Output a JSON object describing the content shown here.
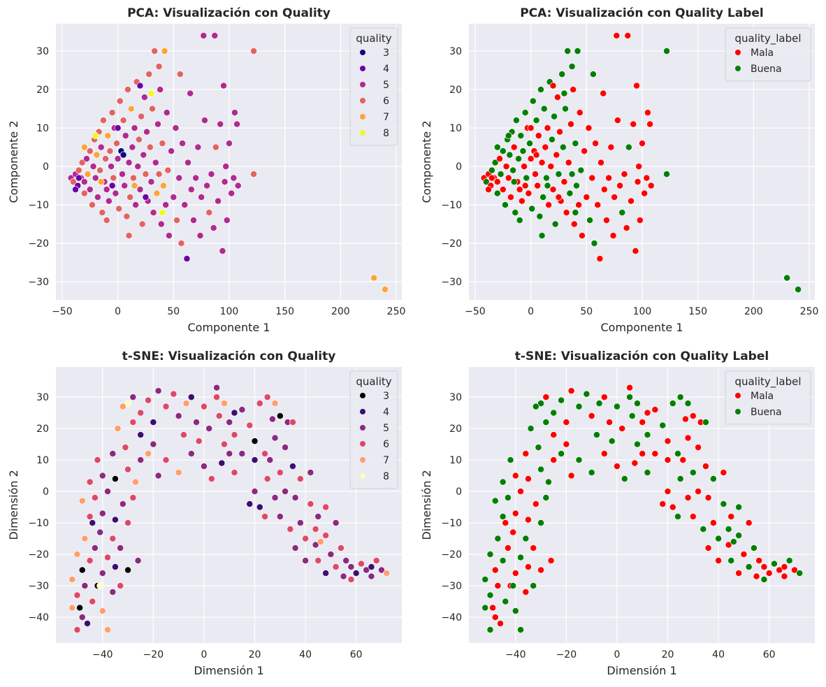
{
  "chart_data": [
    {
      "type": "scatter",
      "title": "PCA: Visualización con Quality",
      "xlabel": "Componente 1",
      "ylabel": "Componente 2",
      "dataset": "pca",
      "hue": "quality",
      "xlim": [
        -55.6,
        255
      ],
      "ylim": [
        -34.7,
        37.1
      ],
      "xticks": [
        -50,
        0,
        50,
        100,
        150,
        200,
        250
      ],
      "yticks": [
        -30,
        -20,
        -10,
        0,
        10,
        20,
        30
      ],
      "legend_title": "quality",
      "legend": [
        {
          "label": "3",
          "key": 3,
          "color": "#0d0887"
        },
        {
          "label": "4",
          "key": 4,
          "color": "#6a00a8"
        },
        {
          "label": "5",
          "key": 5,
          "color": "#b12a90"
        },
        {
          "label": "6",
          "key": 6,
          "color": "#e16462"
        },
        {
          "label": "7",
          "key": 7,
          "color": "#fca636"
        },
        {
          "label": "8",
          "key": 8,
          "color": "#f0f921"
        }
      ],
      "legend_position": "top-right",
      "grid": true
    },
    {
      "type": "scatter",
      "title": "PCA: Visualización con Quality Label",
      "xlabel": "Componente 1",
      "ylabel": "Componente 2",
      "dataset": "pca",
      "hue": "quality_label",
      "xlim": [
        -55.6,
        255
      ],
      "ylim": [
        -34.7,
        37.1
      ],
      "xticks": [
        -50,
        0,
        50,
        100,
        150,
        200,
        250
      ],
      "yticks": [
        -30,
        -20,
        -10,
        0,
        10,
        20,
        30
      ],
      "legend_title": "quality_label",
      "legend": [
        {
          "label": "Mala",
          "key": "Mala",
          "color": "#ff0000"
        },
        {
          "label": "Buena",
          "key": "Buena",
          "color": "#008000"
        }
      ],
      "legend_position": "top-right",
      "grid": true
    },
    {
      "type": "scatter",
      "title": "t-SNE: Visualización con Quality",
      "xlabel": "Dimensión 1",
      "ylabel": "Dimensión 2",
      "dataset": "tsne",
      "hue": "quality",
      "xlim": [
        -58.4,
        78
      ],
      "ylim": [
        -48.2,
        39.6
      ],
      "xticks": [
        -40,
        -20,
        0,
        20,
        40,
        60
      ],
      "yticks": [
        -40,
        -30,
        -20,
        -10,
        0,
        10,
        20,
        30
      ],
      "legend_title": "quality",
      "legend": [
        {
          "label": "3",
          "key": 3,
          "color": "#000004"
        },
        {
          "label": "4",
          "key": 4,
          "color": "#3b0f70"
        },
        {
          "label": "5",
          "key": 5,
          "color": "#8c2981"
        },
        {
          "label": "6",
          "key": 6,
          "color": "#de4968"
        },
        {
          "label": "7",
          "key": 7,
          "color": "#fe9f6d"
        },
        {
          "label": "8",
          "key": 8,
          "color": "#fcfdbf"
        }
      ],
      "legend_position": "top-right",
      "grid": true
    },
    {
      "type": "scatter",
      "title": "t-SNE: Visualización con Quality Label",
      "xlabel": "Dimensión 1",
      "ylabel": "Dimensión 2",
      "dataset": "tsne",
      "hue": "quality_label",
      "xlim": [
        -58.4,
        78
      ],
      "ylim": [
        -48.2,
        39.6
      ],
      "xticks": [
        -40,
        -20,
        0,
        20,
        40,
        60
      ],
      "yticks": [
        -40,
        -30,
        -20,
        -10,
        0,
        10,
        20,
        30
      ],
      "legend_title": "quality_label",
      "legend": [
        {
          "label": "Mala",
          "key": "Mala",
          "color": "#ff0000"
        },
        {
          "label": "Buena",
          "key": "Buena",
          "color": "#008000"
        }
      ],
      "legend_position": "top-right",
      "grid": true
    }
  ],
  "label_rule": {
    "Mala": "quality <= 5",
    "Buena": "quality >= 6"
  },
  "datasets": {
    "pca": [
      [
        -42,
        -3,
        5
      ],
      [
        -40,
        -4,
        6
      ],
      [
        -38,
        -2,
        5
      ],
      [
        -36,
        -5,
        4
      ],
      [
        -35,
        -1,
        6
      ],
      [
        -33,
        -3,
        5
      ],
      [
        -32,
        1,
        6
      ],
      [
        -30,
        -4,
        5
      ],
      [
        -30,
        -7,
        6
      ],
      [
        -28,
        2,
        5
      ],
      [
        -27,
        -2,
        7
      ],
      [
        -25,
        -6,
        5
      ],
      [
        -25,
        4,
        6
      ],
      [
        -23,
        -10,
        6
      ],
      [
        -22,
        0,
        5
      ],
      [
        -21,
        7,
        6
      ],
      [
        -20,
        -3,
        5
      ],
      [
        -19,
        3,
        7
      ],
      [
        -18,
        -8,
        5
      ],
      [
        -17,
        9,
        6
      ],
      [
        -16,
        -1,
        6
      ],
      [
        -15,
        5,
        5
      ],
      [
        -14,
        -12,
        6
      ],
      [
        -13,
        12,
        6
      ],
      [
        -12,
        -4,
        5
      ],
      [
        -11,
        2,
        6
      ],
      [
        -10,
        -6,
        5
      ],
      [
        -9,
        8,
        7
      ],
      [
        -8,
        -9,
        5
      ],
      [
        -7,
        4,
        6
      ],
      [
        -6,
        0,
        5
      ],
      [
        -5,
        14,
        6
      ],
      [
        -4,
        -3,
        6
      ],
      [
        -3,
        10,
        5
      ],
      [
        -2,
        -7,
        5
      ],
      [
        -1,
        6,
        6
      ],
      [
        0,
        2,
        5
      ],
      [
        1,
        -11,
        6
      ],
      [
        2,
        17,
        6
      ],
      [
        3,
        4,
        3
      ],
      [
        4,
        -2,
        5
      ],
      [
        5,
        12,
        6
      ],
      [
        6,
        -5,
        5
      ],
      [
        7,
        8,
        5
      ],
      [
        8,
        -13,
        6
      ],
      [
        9,
        20,
        6
      ],
      [
        10,
        1,
        5
      ],
      [
        11,
        -8,
        6
      ],
      [
        12,
        15,
        7
      ],
      [
        13,
        5,
        5
      ],
      [
        14,
        -3,
        6
      ],
      [
        15,
        10,
        5
      ],
      [
        16,
        -10,
        5
      ],
      [
        17,
        22,
        6
      ],
      [
        18,
        0,
        5
      ],
      [
        19,
        7,
        6
      ],
      [
        20,
        -6,
        5
      ],
      [
        21,
        13,
        6
      ],
      [
        22,
        -15,
        6
      ],
      [
        23,
        3,
        5
      ],
      [
        24,
        18,
        5
      ],
      [
        25,
        -2,
        6
      ],
      [
        26,
        9,
        5
      ],
      [
        27,
        -9,
        5
      ],
      [
        28,
        24,
        6
      ],
      [
        29,
        5,
        6
      ],
      [
        30,
        -4,
        5
      ],
      [
        31,
        15,
        6
      ],
      [
        32,
        -12,
        5
      ],
      [
        33,
        30,
        6
      ],
      [
        34,
        1,
        5
      ],
      [
        35,
        -7,
        7
      ],
      [
        36,
        11,
        5
      ],
      [
        37,
        -2,
        6
      ],
      [
        38,
        20,
        5
      ],
      [
        39,
        -15,
        5
      ],
      [
        40,
        6,
        6
      ],
      [
        41,
        -5,
        7
      ],
      [
        42,
        30,
        7
      ],
      [
        43,
        -10,
        5
      ],
      [
        44,
        14,
        5
      ],
      [
        45,
        -1,
        6
      ],
      [
        46,
        -18,
        5
      ],
      [
        48,
        4,
        5
      ],
      [
        50,
        -8,
        5
      ],
      [
        52,
        10,
        5
      ],
      [
        53,
        -14,
        6
      ],
      [
        55,
        -3,
        5
      ],
      [
        56,
        24,
        6
      ],
      [
        57,
        -20,
        6
      ],
      [
        58,
        6,
        5
      ],
      [
        60,
        -10,
        5
      ],
      [
        62,
        -24,
        4
      ],
      [
        63,
        1,
        5
      ],
      [
        65,
        19,
        5
      ],
      [
        66,
        -6,
        5
      ],
      [
        68,
        -14,
        5
      ],
      [
        70,
        -3,
        5
      ],
      [
        72,
        5,
        5
      ],
      [
        74,
        -18,
        5
      ],
      [
        75,
        -8,
        5
      ],
      [
        77,
        34,
        5
      ],
      [
        78,
        12,
        5
      ],
      [
        80,
        -5,
        5
      ],
      [
        82,
        -12,
        6
      ],
      [
        84,
        -2,
        5
      ],
      [
        86,
        -16,
        5
      ],
      [
        87,
        34,
        5
      ],
      [
        88,
        5,
        6
      ],
      [
        90,
        -9,
        5
      ],
      [
        92,
        11,
        5
      ],
      [
        94,
        -22,
        5
      ],
      [
        95,
        21,
        5
      ],
      [
        96,
        -4,
        5
      ],
      [
        97,
        0,
        5
      ],
      [
        98,
        -14,
        5
      ],
      [
        100,
        6,
        5
      ],
      [
        102,
        -7,
        5
      ],
      [
        104,
        -3,
        5
      ],
      [
        105,
        14,
        5
      ],
      [
        107,
        11,
        5
      ],
      [
        108,
        -5,
        5
      ],
      [
        122,
        30,
        6
      ],
      [
        122,
        -2,
        6
      ],
      [
        230,
        -29,
        7
      ],
      [
        240,
        -32,
        7
      ],
      [
        -38,
        -6,
        4
      ],
      [
        -20,
        8,
        8
      ],
      [
        25,
        -8,
        4
      ],
      [
        20,
        21,
        4
      ],
      [
        40,
        -12,
        8
      ],
      [
        -5,
        -5,
        4
      ],
      [
        -35,
        -3,
        4
      ],
      [
        37,
        26,
        6
      ],
      [
        10,
        -18,
        6
      ],
      [
        -30,
        5,
        7
      ],
      [
        -10,
        -14,
        6
      ],
      [
        0,
        10,
        4
      ],
      [
        5,
        3,
        3
      ],
      [
        30,
        19,
        8
      ],
      [
        -15,
        -4,
        7
      ],
      [
        15,
        -5,
        7
      ]
    ],
    "tsne": [
      [
        -50,
        -44,
        6
      ],
      [
        -48,
        -40,
        5
      ],
      [
        -52,
        -37,
        7
      ],
      [
        -46,
        -42,
        4
      ],
      [
        -50,
        -33,
        6
      ],
      [
        -47,
        -30,
        5
      ],
      [
        -52,
        -28,
        7
      ],
      [
        -44,
        -35,
        6
      ],
      [
        -48,
        -25,
        3
      ],
      [
        -42,
        -30,
        3
      ],
      [
        -45,
        -22,
        6
      ],
      [
        -40,
        -26,
        5
      ],
      [
        -50,
        -20,
        7
      ],
      [
        -43,
        -18,
        5
      ],
      [
        -38,
        -21,
        6
      ],
      [
        -35,
        -24,
        4
      ],
      [
        -47,
        -15,
        7
      ],
      [
        -41,
        -13,
        5
      ],
      [
        -36,
        -15,
        6
      ],
      [
        -33,
        -18,
        5
      ],
      [
        -45,
        -8,
        6
      ],
      [
        -40,
        -7,
        5
      ],
      [
        -35,
        -9,
        4
      ],
      [
        -30,
        -10,
        6
      ],
      [
        -48,
        -3,
        7
      ],
      [
        -43,
        -2,
        6
      ],
      [
        -38,
        0,
        5
      ],
      [
        -32,
        -4,
        5
      ],
      [
        -28,
        -2,
        6
      ],
      [
        -45,
        3,
        6
      ],
      [
        -40,
        5,
        5
      ],
      [
        -35,
        4,
        3
      ],
      [
        -30,
        7,
        6
      ],
      [
        -27,
        3,
        7
      ],
      [
        -42,
        10,
        6
      ],
      [
        -36,
        12,
        5
      ],
      [
        -31,
        14,
        6
      ],
      [
        -25,
        10,
        5
      ],
      [
        -34,
        20,
        7
      ],
      [
        -28,
        22,
        6
      ],
      [
        -30,
        -25,
        3
      ],
      [
        -36,
        -32,
        5
      ],
      [
        -40,
        -38,
        7
      ],
      [
        -25,
        25,
        6
      ],
      [
        -28,
        30,
        5
      ],
      [
        -22,
        29,
        6
      ],
      [
        -18,
        32,
        5
      ],
      [
        -15,
        27,
        6
      ],
      [
        -20,
        22,
        4
      ],
      [
        -12,
        31,
        6
      ],
      [
        -10,
        24,
        5
      ],
      [
        -7,
        28,
        7
      ],
      [
        -3,
        22,
        5
      ],
      [
        0,
        27,
        6
      ],
      [
        2,
        20,
        5
      ],
      [
        5,
        33,
        5
      ],
      [
        6,
        24,
        6
      ],
      [
        8,
        28,
        7
      ],
      [
        10,
        22,
        5
      ],
      [
        12,
        18,
        6
      ],
      [
        15,
        26,
        5
      ],
      [
        18,
        21,
        6
      ],
      [
        20,
        16,
        3
      ],
      [
        22,
        28,
        6
      ],
      [
        25,
        30,
        6
      ],
      [
        27,
        23,
        5
      ],
      [
        30,
        24,
        3
      ],
      [
        33,
        22,
        5
      ],
      [
        35,
        22,
        6
      ],
      [
        28,
        17,
        5
      ],
      [
        -20,
        15,
        5
      ],
      [
        -15,
        10,
        6
      ],
      [
        -10,
        6,
        7
      ],
      [
        -5,
        12,
        5
      ],
      [
        0,
        8,
        5
      ],
      [
        3,
        4,
        6
      ],
      [
        7,
        9,
        4
      ],
      [
        10,
        12,
        5
      ],
      [
        12,
        6,
        6
      ],
      [
        -25,
        18,
        4
      ],
      [
        -18,
        5,
        5
      ],
      [
        -8,
        18,
        6
      ],
      [
        15,
        12,
        5
      ],
      [
        -2,
        16,
        6
      ],
      [
        20,
        10,
        4
      ],
      [
        24,
        12,
        6
      ],
      [
        20,
        0,
        5
      ],
      [
        22,
        -5,
        4
      ],
      [
        25,
        4,
        6
      ],
      [
        28,
        -2,
        5
      ],
      [
        30,
        6,
        6
      ],
      [
        32,
        0,
        5
      ],
      [
        35,
        8,
        4
      ],
      [
        38,
        4,
        6
      ],
      [
        42,
        6,
        5
      ],
      [
        30,
        -8,
        5
      ],
      [
        34,
        -12,
        6
      ],
      [
        38,
        -10,
        5
      ],
      [
        42,
        -4,
        6
      ],
      [
        45,
        -8,
        5
      ],
      [
        48,
        -5,
        6
      ],
      [
        36,
        -18,
        5
      ],
      [
        40,
        -15,
        6
      ],
      [
        44,
        -17,
        5
      ],
      [
        48,
        -14,
        6
      ],
      [
        52,
        -10,
        5
      ],
      [
        40,
        -22,
        5
      ],
      [
        45,
        -22,
        6
      ],
      [
        50,
        -20,
        5
      ],
      [
        54,
        -18,
        6
      ],
      [
        48,
        -26,
        4
      ],
      [
        52,
        -24,
        6
      ],
      [
        55,
        -27,
        5
      ],
      [
        58,
        -24,
        5
      ],
      [
        60,
        -26,
        4
      ],
      [
        62,
        -23,
        6
      ],
      [
        64,
        -25,
        5
      ],
      [
        66,
        -27,
        5
      ],
      [
        68,
        -22,
        6
      ],
      [
        70,
        -25,
        5
      ],
      [
        72,
        -26,
        7
      ],
      [
        56,
        -22,
        5
      ],
      [
        46,
        -16,
        7
      ],
      [
        26,
        10,
        5
      ],
      [
        24,
        -8,
        6
      ],
      [
        -49,
        -37,
        3
      ],
      [
        -41,
        -30,
        8
      ],
      [
        -30,
        28,
        8
      ],
      [
        -32,
        27,
        7
      ],
      [
        -26,
        -22,
        5
      ],
      [
        -33,
        -30,
        6
      ],
      [
        5,
        30,
        6
      ],
      [
        -5,
        30,
        4
      ],
      [
        12,
        25,
        4
      ],
      [
        -22,
        12,
        7
      ],
      [
        28,
        28,
        7
      ],
      [
        32,
        14,
        5
      ],
      [
        8,
        15,
        6
      ],
      [
        18,
        -4,
        4
      ],
      [
        36,
        -2,
        5
      ],
      [
        44,
        -12,
        6
      ],
      [
        58,
        -28,
        6
      ],
      [
        66,
        -24,
        4
      ],
      [
        -44,
        -10,
        4
      ],
      [
        -38,
        -44,
        7
      ]
    ]
  }
}
